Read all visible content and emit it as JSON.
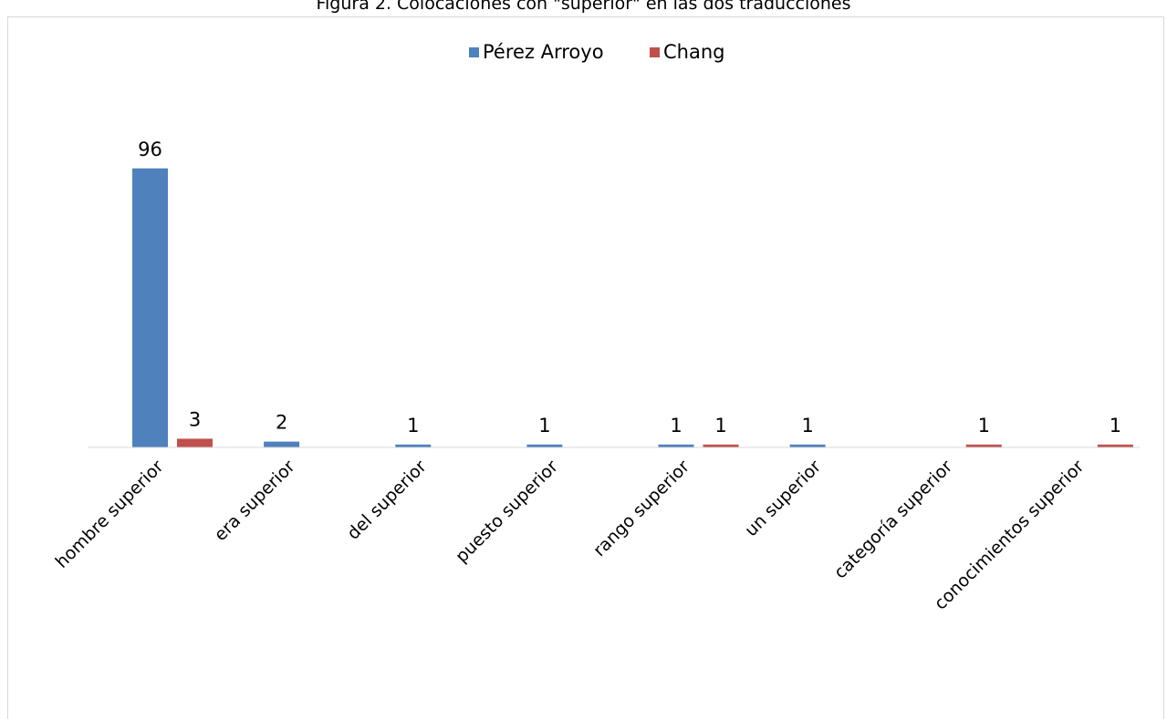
{
  "chart_data": {
    "type": "bar",
    "title": "Figura 2. Colocaciones con \"superior\" en las dos traducciones",
    "categories": [
      "hombre superior",
      "era superior",
      "del superior",
      "puesto superior",
      "rango superior",
      "un superior",
      "categoría superior",
      "conocimientos superior"
    ],
    "series": [
      {
        "name": "Pérez Arroyo",
        "color": "#4f81bd",
        "values": [
          96,
          2,
          1,
          1,
          1,
          1,
          null,
          null
        ]
      },
      {
        "name": "Chang",
        "color": "#c0504d",
        "values": [
          3,
          null,
          null,
          null,
          1,
          null,
          1,
          1
        ]
      }
    ],
    "ylim": [
      0,
      100
    ],
    "grid": false,
    "legend": "top",
    "data_labels": true,
    "axis_color": "#d9d9d9"
  }
}
